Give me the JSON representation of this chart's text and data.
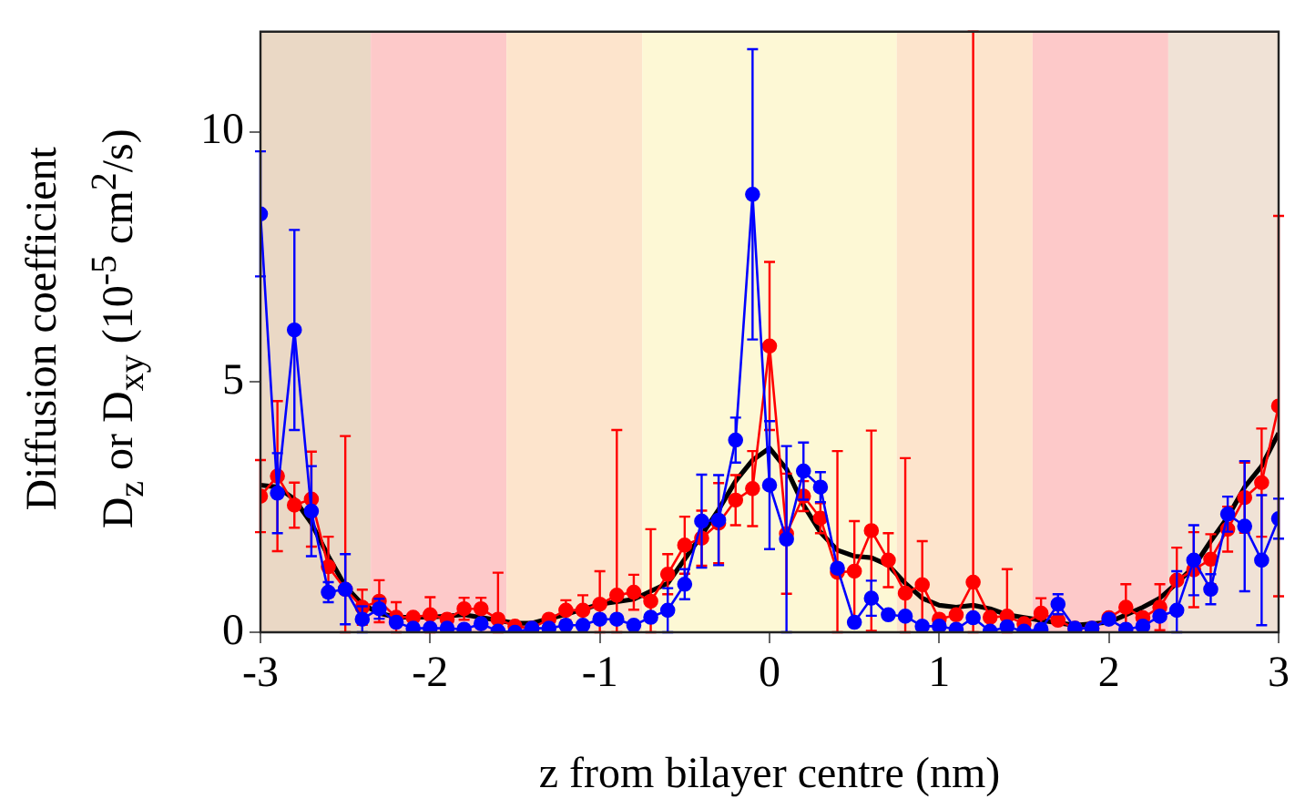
{
  "chart_data": {
    "type": "line",
    "xlabel": "z from bilayer centre (nm)",
    "ylabel": "Diffusion coefficient\nD$_{z}$ or D$_{xy}$ (10$^{-5}$ cm$^{2}$/s)",
    "x": [
      -3,
      -2.9,
      -2.8,
      -2.7,
      -2.6,
      -2.5,
      -2.4,
      -2.3,
      -2.2,
      -2.1,
      -2,
      -1.9,
      -1.8,
      -1.7,
      -1.6,
      -1.5,
      -1.4,
      -1.3,
      -1.2,
      -1.1,
      -1,
      -0.9,
      -0.8,
      -0.7,
      -0.6,
      -0.5,
      -0.4,
      -0.3,
      -0.2,
      -0.1,
      0,
      0.1,
      0.2,
      0.3,
      0.4,
      0.5,
      0.6,
      0.7,
      0.8,
      0.9,
      1,
      1.1,
      1.2,
      1.3,
      1.4,
      1.5,
      1.6,
      1.7,
      1.8,
      1.9,
      2,
      2.1,
      2.2,
      2.3,
      2.4,
      2.5,
      2.6,
      2.7,
      2.8,
      2.9,
      3
    ],
    "series": [
      {
        "color": "#0000ff",
        "marker": "circle",
        "values": [
          8.36,
          2.78,
          6.04,
          2.42,
          0.8,
          0.86,
          0.26,
          0.47,
          0.2,
          0.08,
          0.08,
          0.08,
          0.06,
          0.17,
          0.02,
          0,
          0.08,
          0.08,
          0.14,
          0.14,
          0.26,
          0.26,
          0.14,
          0.3,
          0.44,
          0.96,
          2.22,
          2.24,
          3.84,
          8.75,
          2.94,
          1.86,
          3.22,
          2.9,
          1.28,
          0.2,
          0.68,
          0.35,
          0.32,
          0.12,
          0.12,
          0.06,
          0.29,
          0.02,
          0.11,
          0.02,
          0.06,
          0.56,
          0.08,
          0.08,
          0.26,
          0.06,
          0.12,
          0.32,
          0.44,
          1.44,
          0.86,
          2.36,
          2.12,
          1.44,
          2.27
        ],
        "errors": [
          1.25,
          0.8,
          2.0,
          0.9,
          0.2,
          0.7,
          0.26,
          0.2,
          null,
          null,
          null,
          null,
          null,
          null,
          null,
          null,
          null,
          null,
          null,
          null,
          null,
          null,
          null,
          null,
          0.44,
          0.3,
          0.93,
          0.9,
          0.45,
          2.9,
          1.28,
          1.86,
          0.57,
          0.3,
          null,
          null,
          0.35,
          null,
          null,
          null,
          null,
          null,
          null,
          null,
          null,
          null,
          null,
          0.2,
          null,
          null,
          null,
          null,
          null,
          null,
          [
            0,
            1.22
          ],
          0.7,
          0.3,
          0.35,
          1.3,
          1.3,
          0.4
        ]
      },
      {
        "color": "#ff0000",
        "marker": "circle",
        "values": [
          2.72,
          3.12,
          2.54,
          2.66,
          1.31,
          0.86,
          0.5,
          0.62,
          0.3,
          0.3,
          0.35,
          0.26,
          0.47,
          0.47,
          0.26,
          0.12,
          0.08,
          0.26,
          0.44,
          0.44,
          0.56,
          0.74,
          0.8,
          0.62,
          1.16,
          1.74,
          1.88,
          2.18,
          2.64,
          2.87,
          5.72,
          1.97,
          2.72,
          2.28,
          1.2,
          1.22,
          2.03,
          1.44,
          0.78,
          0.95,
          0.26,
          0.35,
          1.0,
          0.3,
          0.32,
          0.17,
          0.38,
          0.24,
          0.08,
          0.08,
          0.29,
          0.5,
          0.29,
          0.5,
          1.04,
          1.25,
          1.46,
          2.06,
          2.69,
          2.99,
          4.52
        ],
        "errors": [
          0.72,
          1.5,
          0.45,
          0.95,
          0.6,
          [
            0,
            3.92
          ],
          0.35,
          0.42,
          0.3,
          null,
          0.35,
          null,
          0.22,
          0.22,
          [
            0,
            1.19
          ],
          null,
          null,
          null,
          0.2,
          0.3,
          [
            0,
            1.22
          ],
          [
            0,
            4.04
          ],
          0.35,
          [
            0,
            2.06
          ],
          0.4,
          0.57,
          0.55,
          0.8,
          0.5,
          0.75,
          1.68,
          1.2,
          0.3,
          0.3,
          [
            0,
            3.62
          ],
          1.0,
          2.0,
          0.54,
          [
            0,
            3.48
          ],
          0.87,
          null,
          null,
          [
            0,
            12
          ],
          null,
          [
            0,
            1.26
          ],
          null,
          0.3,
          null,
          null,
          null,
          null,
          0.46,
          null,
          0.46,
          0.65,
          0.75,
          0.5,
          0.45,
          0.7,
          1.08,
          3.8
        ]
      },
      {
        "color": "#000000",
        "marker": "none",
        "x": [
          -3,
          -2.9,
          -2.8,
          -2.7,
          -2.6,
          -2.5,
          -2.4,
          -2.3,
          -2.2,
          -2,
          -1.8,
          -1.6,
          -1.5,
          -1.4,
          -1.2,
          -1,
          -0.8,
          -0.6,
          -0.4,
          -0.3,
          -0.2,
          -0.1,
          0,
          0.1,
          0.2,
          0.3,
          0.4,
          0.5,
          0.6,
          0.7,
          0.8,
          0.9,
          1,
          1.1,
          1.2,
          1.3,
          1.4,
          1.6,
          1.8,
          2,
          2.2,
          2.3,
          2.4,
          2.5,
          2.6,
          2.7,
          2.8,
          2.9,
          3
        ],
        "values": [
          2.94,
          2.9,
          2.66,
          2.18,
          1.52,
          0.92,
          0.56,
          0.38,
          0.3,
          0.3,
          0.35,
          0.24,
          0.18,
          0.18,
          0.36,
          0.56,
          0.66,
          0.98,
          1.94,
          2.45,
          3.02,
          3.44,
          3.68,
          3.26,
          2.54,
          2.0,
          1.64,
          1.52,
          1.49,
          1.34,
          0.98,
          0.68,
          0.54,
          0.5,
          0.54,
          0.47,
          0.35,
          0.24,
          0.14,
          0.2,
          0.5,
          0.68,
          0.98,
          1.31,
          1.82,
          2.3,
          2.9,
          3.32,
          3.98
        ]
      }
    ],
    "bands": [
      {
        "axis": "x",
        "from": -3,
        "to": -2.35,
        "color": "#ead8c5"
      },
      {
        "axis": "x",
        "from": -2.35,
        "to": -1.55,
        "color": "#fdc9c9"
      },
      {
        "axis": "x",
        "from": -1.55,
        "to": -0.75,
        "color": "#fde4cc"
      },
      {
        "axis": "x",
        "from": -0.75,
        "to": 0.75,
        "color": "#fdf8d5"
      },
      {
        "axis": "x",
        "from": 0.75,
        "to": 1.55,
        "color": "#fde4cc"
      },
      {
        "axis": "x",
        "from": 1.55,
        "to": 2.35,
        "color": "#fdc9c9"
      },
      {
        "axis": "x",
        "from": 2.35,
        "to": 3,
        "color": "#f0e2d6"
      }
    ],
    "xlim": [
      -3,
      3
    ],
    "xticks": [
      -3,
      -2,
      -1,
      0,
      1,
      2,
      3
    ],
    "ylim": [
      0,
      12
    ],
    "yticks": [
      0,
      5,
      10
    ]
  }
}
